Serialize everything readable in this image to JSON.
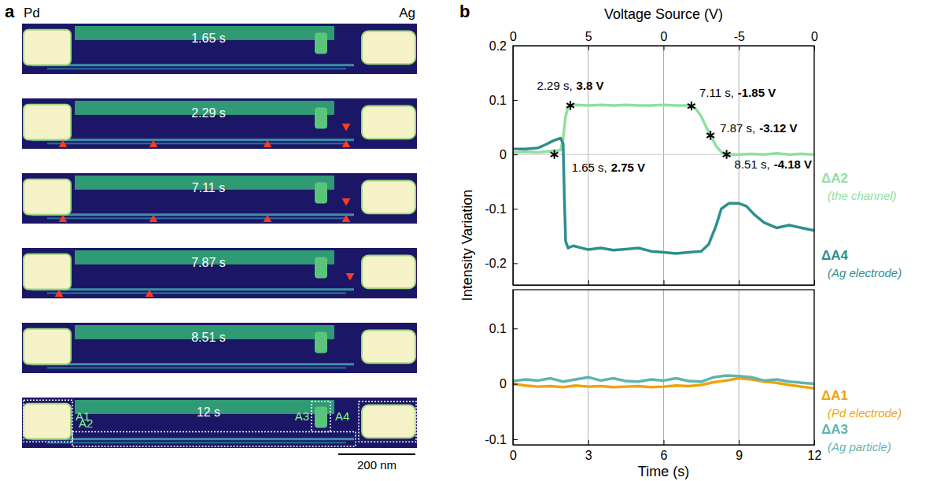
{
  "panel_a": {
    "label": "a",
    "left_electrode": "Pd",
    "right_electrode": "Ag",
    "frames": [
      "1.65 s",
      "2.29 s",
      "7.11 s",
      "7.87 s",
      "8.51 s",
      "12 s"
    ],
    "regions": [
      "A1",
      "A2",
      "A3",
      "A4"
    ],
    "scale_bar": "200 nm"
  },
  "chart_data": [
    {
      "type": "line",
      "panel_label": "b",
      "ylabel": "Intensity Variation",
      "x2label": "Voltage Source (V)",
      "xlim": [
        0,
        12
      ],
      "ylim": [
        -0.24,
        0.2
      ],
      "xticks": [
        0,
        3,
        6,
        9,
        12
      ],
      "yticks": [
        0.2,
        0.1,
        0,
        -0.1,
        -0.2
      ],
      "x2ticks": [
        0,
        {
          "value": 3,
          "label": "5"
        },
        {
          "value": 6,
          "label": "0"
        },
        {
          "value": 9,
          "label": "-5"
        },
        {
          "value": 12,
          "label": "0"
        }
      ],
      "tick_labels": "y",
      "grid": "x",
      "hline": 0,
      "series": [
        {
          "name": "ΔA2",
          "note": "(the channel)",
          "color": "#8fe0a0",
          "x": [
            0,
            0.5,
            1,
            1.5,
            1.9,
            2.0,
            2.1,
            2.2,
            2.29,
            2.5,
            3,
            3.5,
            4,
            4.5,
            5,
            5.5,
            6,
            6.5,
            7,
            7.11,
            7.3,
            7.5,
            7.7,
            7.87,
            8.1,
            8.3,
            8.51,
            9,
            9.5,
            10,
            10.5,
            11,
            11.5,
            12
          ],
          "values": [
            0.003,
            0.005,
            0.004,
            0.006,
            0.008,
            0.03,
            0.07,
            0.088,
            0.09,
            0.091,
            0.09,
            0.091,
            0.09,
            0.091,
            0.09,
            0.09,
            0.091,
            0.09,
            0.09,
            0.089,
            0.083,
            0.07,
            0.05,
            0.035,
            0.015,
            0.004,
            0,
            0,
            0.001,
            0,
            0.002,
            0,
            0.001,
            0
          ]
        },
        {
          "name": "ΔA4",
          "note": "(Ag electrode)",
          "color": "#2e8f8c",
          "x": [
            0,
            0.5,
            1,
            1.3,
            1.6,
            1.9,
            2.0,
            2.05,
            2.1,
            2.2,
            2.4,
            3,
            3.5,
            4,
            4.5,
            5,
            5.5,
            6,
            6.5,
            7,
            7.5,
            7.8,
            8.1,
            8.3,
            8.6,
            9,
            9.3,
            9.6,
            10,
            10.5,
            11,
            11.5,
            12
          ],
          "values": [
            0.01,
            0.01,
            0.012,
            0.018,
            0.025,
            0.03,
            0.02,
            -0.08,
            -0.16,
            -0.172,
            -0.168,
            -0.175,
            -0.172,
            -0.176,
            -0.174,
            -0.172,
            -0.178,
            -0.18,
            -0.182,
            -0.18,
            -0.178,
            -0.165,
            -0.13,
            -0.1,
            -0.09,
            -0.09,
            -0.095,
            -0.11,
            -0.125,
            -0.135,
            -0.13,
            -0.135,
            -0.14
          ]
        }
      ],
      "annotations": [
        {
          "x": 2.29,
          "y": 0.09,
          "text": "2.29 s,",
          "bold_text": "3.8 V"
        },
        {
          "x": 1.65,
          "y": 0.0,
          "text": "1.65 s,",
          "bold_text": "2.75 V"
        },
        {
          "x": 7.11,
          "y": 0.089,
          "text": "7.11 s,",
          "bold_text": "-1.85 V"
        },
        {
          "x": 7.87,
          "y": 0.035,
          "text": "7.87 s,",
          "bold_text": "-3.12 V"
        },
        {
          "x": 8.51,
          "y": 0.0,
          "text": "8.51 s,",
          "bold_text": "-4.18 V"
        }
      ]
    },
    {
      "type": "line",
      "xlabel": "Time (s)",
      "xlim": [
        0,
        12
      ],
      "ylim": [
        -0.11,
        0.17
      ],
      "xticks": [
        0,
        3,
        6,
        9,
        12
      ],
      "yticks": [
        0.1,
        0,
        -0.1
      ],
      "grid": "x",
      "series": [
        {
          "name": "ΔA1",
          "note": "(Pd electrode)",
          "color": "#f0a30a",
          "x": [
            0,
            0.5,
            1,
            1.5,
            2,
            2.5,
            3,
            3.5,
            4,
            4.5,
            5,
            5.5,
            6,
            6.5,
            7,
            7.5,
            8,
            8.5,
            9,
            9.5,
            10,
            10.5,
            11,
            11.5,
            12
          ],
          "values": [
            0,
            -0.003,
            -0.005,
            -0.004,
            -0.006,
            -0.003,
            -0.005,
            -0.004,
            -0.006,
            -0.005,
            -0.004,
            -0.006,
            -0.005,
            -0.003,
            -0.004,
            -0.002,
            0.003,
            0.006,
            0.01,
            0.008,
            0.004,
            0.002,
            -0.002,
            -0.005,
            -0.008
          ]
        },
        {
          "name": "ΔA3",
          "note": "(Ag particle)",
          "color": "#5fb4b0",
          "x": [
            0,
            0.5,
            1,
            1.5,
            2,
            2.5,
            3,
            3.5,
            4,
            4.5,
            5,
            5.5,
            6,
            6.5,
            7,
            7.5,
            8,
            8.5,
            9,
            9.5,
            10,
            10.5,
            11,
            11.5,
            12
          ],
          "values": [
            0.005,
            0.008,
            0.006,
            0.01,
            0.004,
            0.008,
            0.012,
            0.006,
            0.01,
            0.005,
            0.004,
            0.008,
            0.006,
            0.01,
            0.005,
            0.004,
            0.012,
            0.015,
            0.014,
            0.012,
            0.006,
            0.008,
            0.004,
            0.002,
            0
          ]
        }
      ]
    }
  ]
}
